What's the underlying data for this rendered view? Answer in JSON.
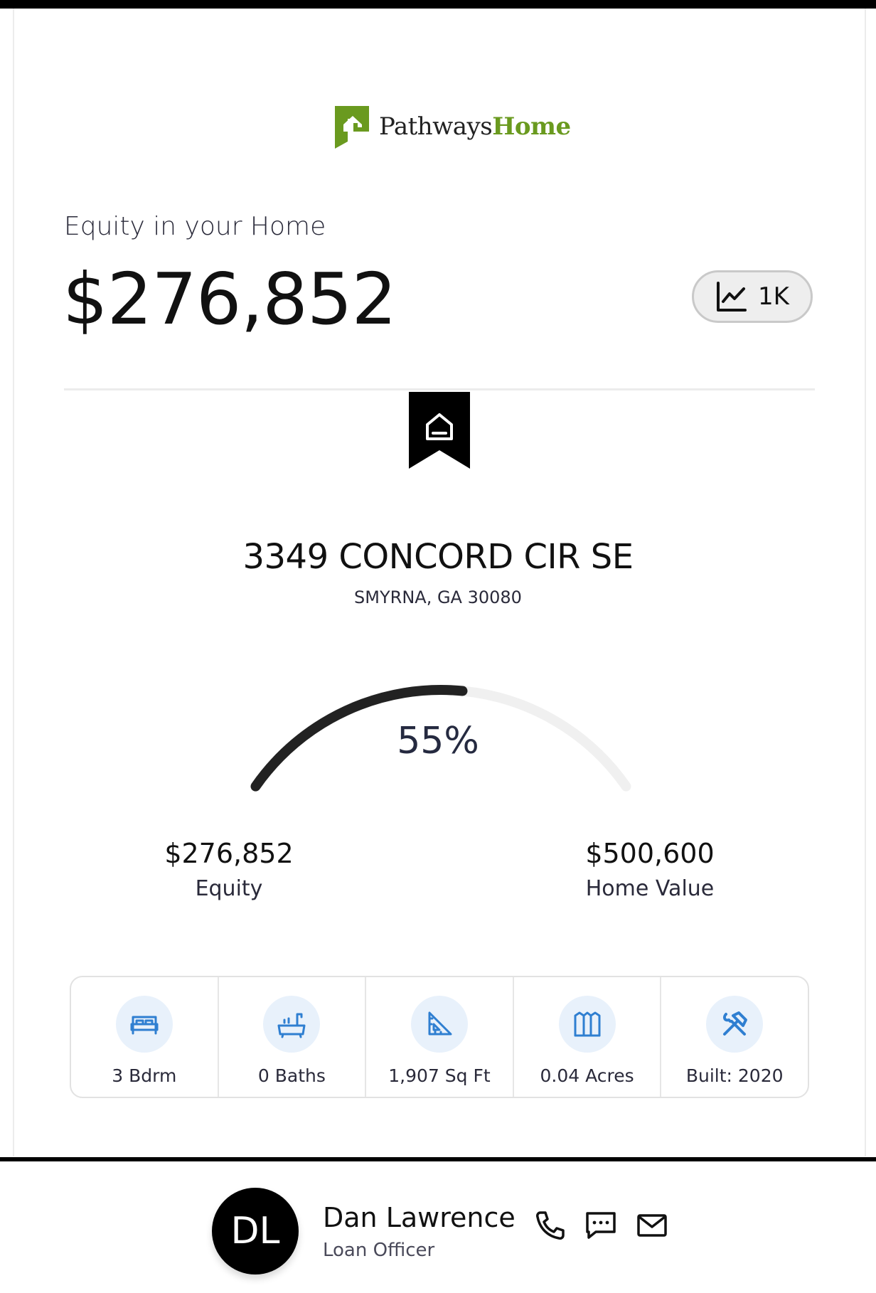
{
  "brand": {
    "name_part1": "Pathways",
    "name_part2": "Home",
    "icon": "pathways-logo-icon",
    "accent": "#6a9a1f"
  },
  "equity": {
    "label": "Equity in your Home",
    "amount": "$276,852"
  },
  "chart_button": {
    "icon": "line-chart-icon",
    "label": "1K"
  },
  "property": {
    "icon": "home-bookmark-icon",
    "address": "3349 CONCORD CIR SE",
    "city_line": "SMYRNA, GA 30080"
  },
  "gauge": {
    "percent_label": "55%",
    "fraction": 0.55,
    "fill_color": "#222222",
    "track_color": "#f0f0f0"
  },
  "stats": {
    "equity": {
      "value": "$276,852",
      "label": "Equity"
    },
    "home_value": {
      "value": "$500,600",
      "label": "Home Value"
    }
  },
  "features": [
    {
      "icon": "bed-icon",
      "label": "3 Bdrm"
    },
    {
      "icon": "bathtub-icon",
      "label": "0 Baths"
    },
    {
      "icon": "ruler-triangle-icon",
      "label": "1,907 Sq Ft"
    },
    {
      "icon": "fence-icon",
      "label": "0.04 Acres"
    },
    {
      "icon": "hammer-wrench-icon",
      "label": "Built: 2020"
    }
  ],
  "loan_officer": {
    "initials": "DL",
    "name": "Dan Lawrence",
    "title": "Loan Officer",
    "contacts": [
      "phone-icon",
      "message-icon",
      "mail-icon"
    ]
  },
  "colors": {
    "icon_blue": "#2f7fd1",
    "icon_circle_bg": "#e8f1fb"
  }
}
